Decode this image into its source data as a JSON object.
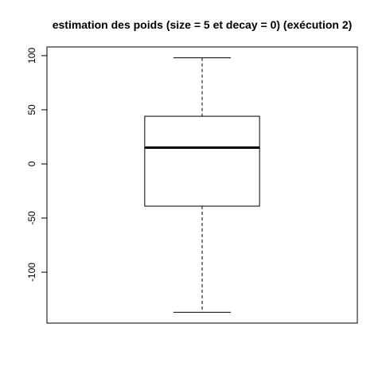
{
  "chart_data": {
    "type": "boxplot",
    "title": "estimation des poids (size = 5 et decay = 0) (exécution 2)",
    "xlabel": "",
    "ylabel": "",
    "ylim": [
      -147,
      108
    ],
    "yticks": [
      100,
      50,
      0,
      -50,
      -100
    ],
    "ytick_labels": [
      "100",
      "50",
      "0",
      "-50",
      "-100"
    ],
    "grid": false,
    "boxes": [
      {
        "whisker_low": -137,
        "q1": -39,
        "median": 15,
        "q3": 44,
        "whisker_high": 98
      }
    ]
  }
}
